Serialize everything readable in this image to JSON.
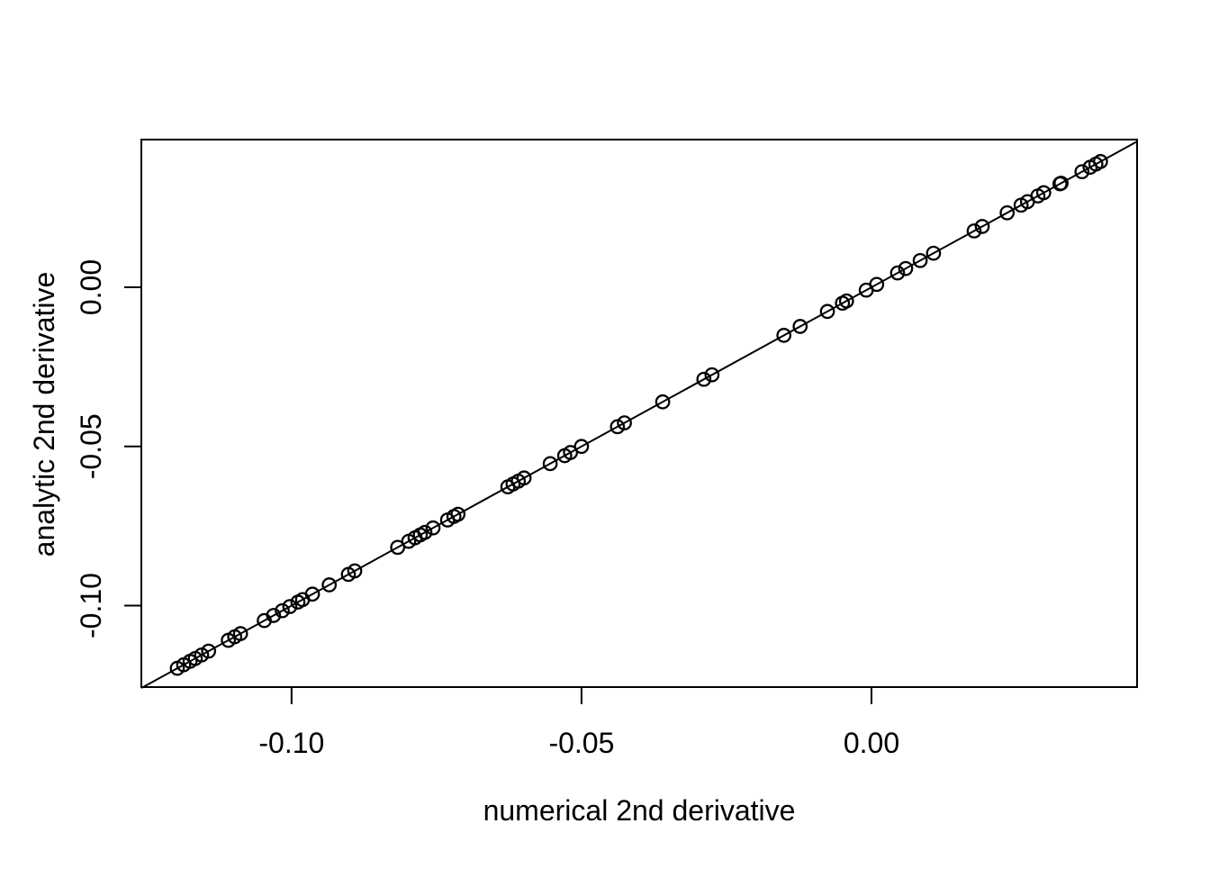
{
  "chart_data": {
    "type": "scatter",
    "title": "",
    "xlabel": "numerical 2nd derivative",
    "ylabel": "analytic 2nd derivative",
    "x_ticks": [
      -0.1,
      -0.05,
      0.0
    ],
    "x_tick_labels": [
      "-0.10",
      "-0.05",
      "0.00"
    ],
    "y_ticks": [
      0.0,
      -0.05,
      -0.1
    ],
    "y_tick_labels": [
      "0.00",
      "-0.05",
      "-0.10"
    ],
    "xlim": [
      -0.1259,
      0.0458
    ],
    "ylim": [
      -0.1256,
      0.0464
    ],
    "grid": false,
    "legend": "none",
    "identity_line": true,
    "note": "all points lie on the y = x identity line; values below are both x and y",
    "values": [
      -0.1197,
      -0.1186,
      -0.1175,
      -0.1166,
      -0.1155,
      -0.1143,
      -0.1109,
      -0.1098,
      -0.1088,
      -0.1047,
      -0.1031,
      -0.1016,
      -0.1003,
      -0.0989,
      -0.0981,
      -0.0964,
      -0.0935,
      -0.0902,
      -0.0891,
      -0.0817,
      -0.0798,
      -0.0787,
      -0.0778,
      -0.077,
      -0.0756,
      -0.0731,
      -0.072,
      -0.0713,
      -0.0627,
      -0.0618,
      -0.0609,
      -0.0599,
      -0.0554,
      -0.0529,
      -0.0519,
      -0.05,
      -0.0438,
      -0.0426,
      -0.036,
      -0.0289,
      -0.0275,
      -0.0151,
      -0.0123,
      -0.0076,
      -0.005,
      -0.0043,
      -0.0009,
      0.0009,
      0.0045,
      0.0059,
      0.0084,
      0.0107,
      0.0177,
      0.0191,
      0.0234,
      0.0258,
      0.0269,
      0.0287,
      0.0297,
      0.0325,
      0.0327,
      0.0363,
      0.0377,
      0.0387,
      0.0395
    ],
    "colors": {
      "foreground": "#000000",
      "background": "#ffffff"
    }
  }
}
